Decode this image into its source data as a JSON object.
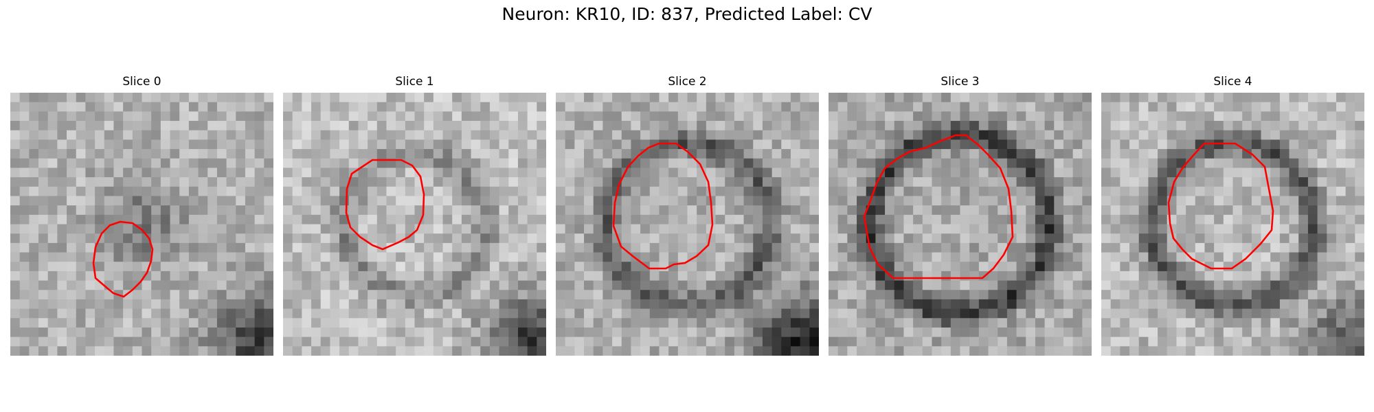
{
  "figure": {
    "title": "Neuron: KR10, ID: 837, Predicted Label: CV",
    "contour_color": "#ff0000"
  },
  "panels": [
    {
      "title": "Slice 0",
      "seed": 11,
      "base": 178,
      "ring": 0,
      "blob": 55,
      "ringR": 0.2,
      "corner": 110
    },
    {
      "title": "Slice 1",
      "seed": 23,
      "base": 190,
      "ring": 55,
      "blob": 0,
      "ringR": 0.27,
      "corner": 130
    },
    {
      "title": "Slice 2",
      "seed": 37,
      "base": 175,
      "ring": 85,
      "blob": 0,
      "ringR": 0.31,
      "corner": 140
    },
    {
      "title": "Slice 3",
      "seed": 41,
      "base": 170,
      "ring": 110,
      "blob": 0,
      "ringR": 0.34,
      "corner": 0
    },
    {
      "title": "Slice 4",
      "seed": 53,
      "base": 185,
      "ring": 100,
      "blob": 0,
      "ringR": 0.31,
      "corner": 90
    }
  ]
}
